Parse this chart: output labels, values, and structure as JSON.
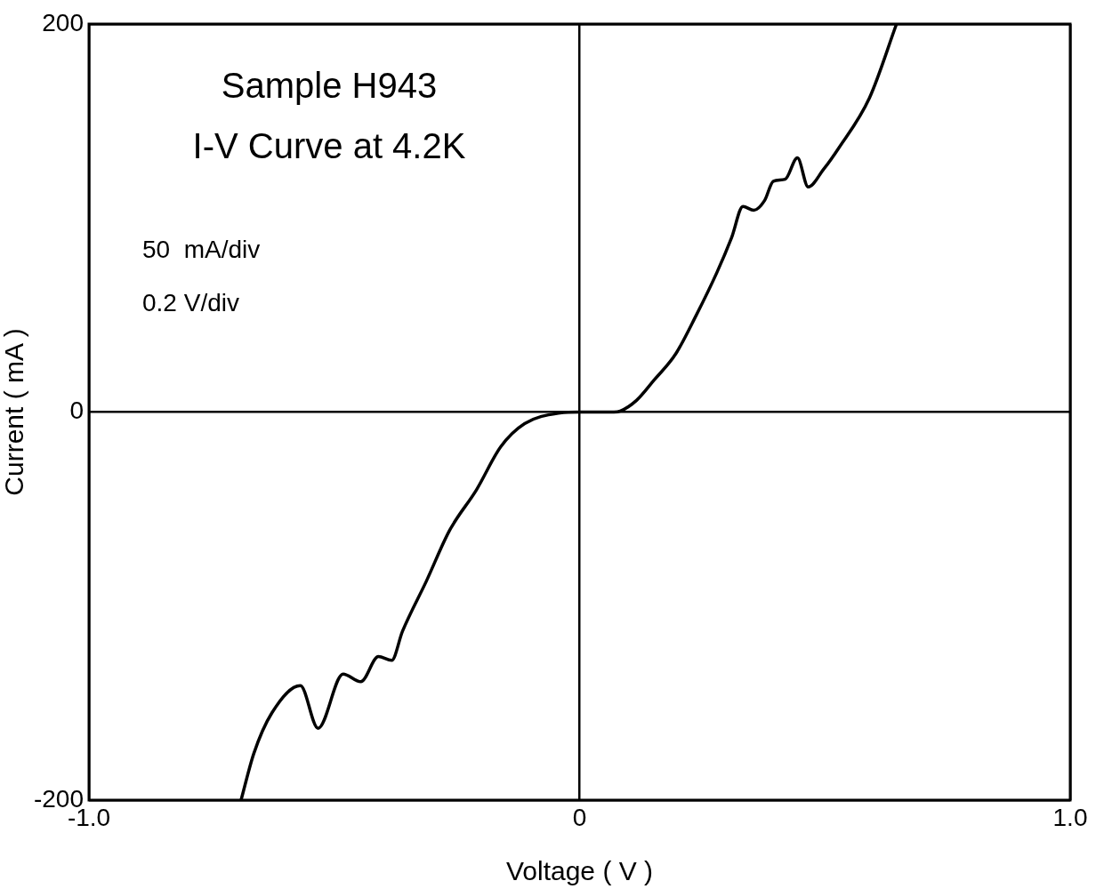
{
  "chart_data": {
    "type": "line",
    "title": "Sample H943",
    "subtitle": "I-V Curve at 4.2K",
    "xlabel": "Voltage ( V )",
    "ylabel": "Current ( mA )",
    "annotations": [
      "50  mA/div",
      "0.2 V/div"
    ],
    "x": [
      -0.69,
      -0.664,
      -0.627,
      -0.569,
      -0.533,
      -0.482,
      -0.446,
      -0.41,
      -0.383,
      -0.361,
      -0.312,
      -0.265,
      -0.21,
      -0.161,
      -0.112,
      -0.04,
      0,
      0.07,
      0.083,
      0.116,
      0.152,
      0.196,
      0.238,
      0.28,
      0.31,
      0.333,
      0.355,
      0.377,
      0.395,
      0.419,
      0.444,
      0.466,
      0.497,
      0.528,
      0.591,
      0.646
    ],
    "series": [
      {
        "color": "#000000",
        "values": [
          -200,
          -176,
          -155,
          -141,
          -163,
          -135,
          -139,
          -126,
          -128,
          -113,
          -87,
          -61,
          -40,
          -18,
          -6,
          -0.5,
          0,
          0,
          0.5,
          6,
          16.5,
          30,
          50,
          72,
          90,
          106,
          104,
          109,
          119,
          120,
          131,
          116,
          125,
          136,
          162,
          200
        ]
      }
    ],
    "xlim": [
      -1,
      1
    ],
    "ylim": [
      -200,
      200
    ],
    "xticks": [
      {
        "value": -1,
        "label": "-1.0"
      },
      0,
      {
        "value": 1,
        "label": "1.0"
      }
    ],
    "yticks": [
      -200,
      0,
      200
    ],
    "grid": true,
    "legend": false,
    "marker": "none",
    "line_style": "solid"
  }
}
